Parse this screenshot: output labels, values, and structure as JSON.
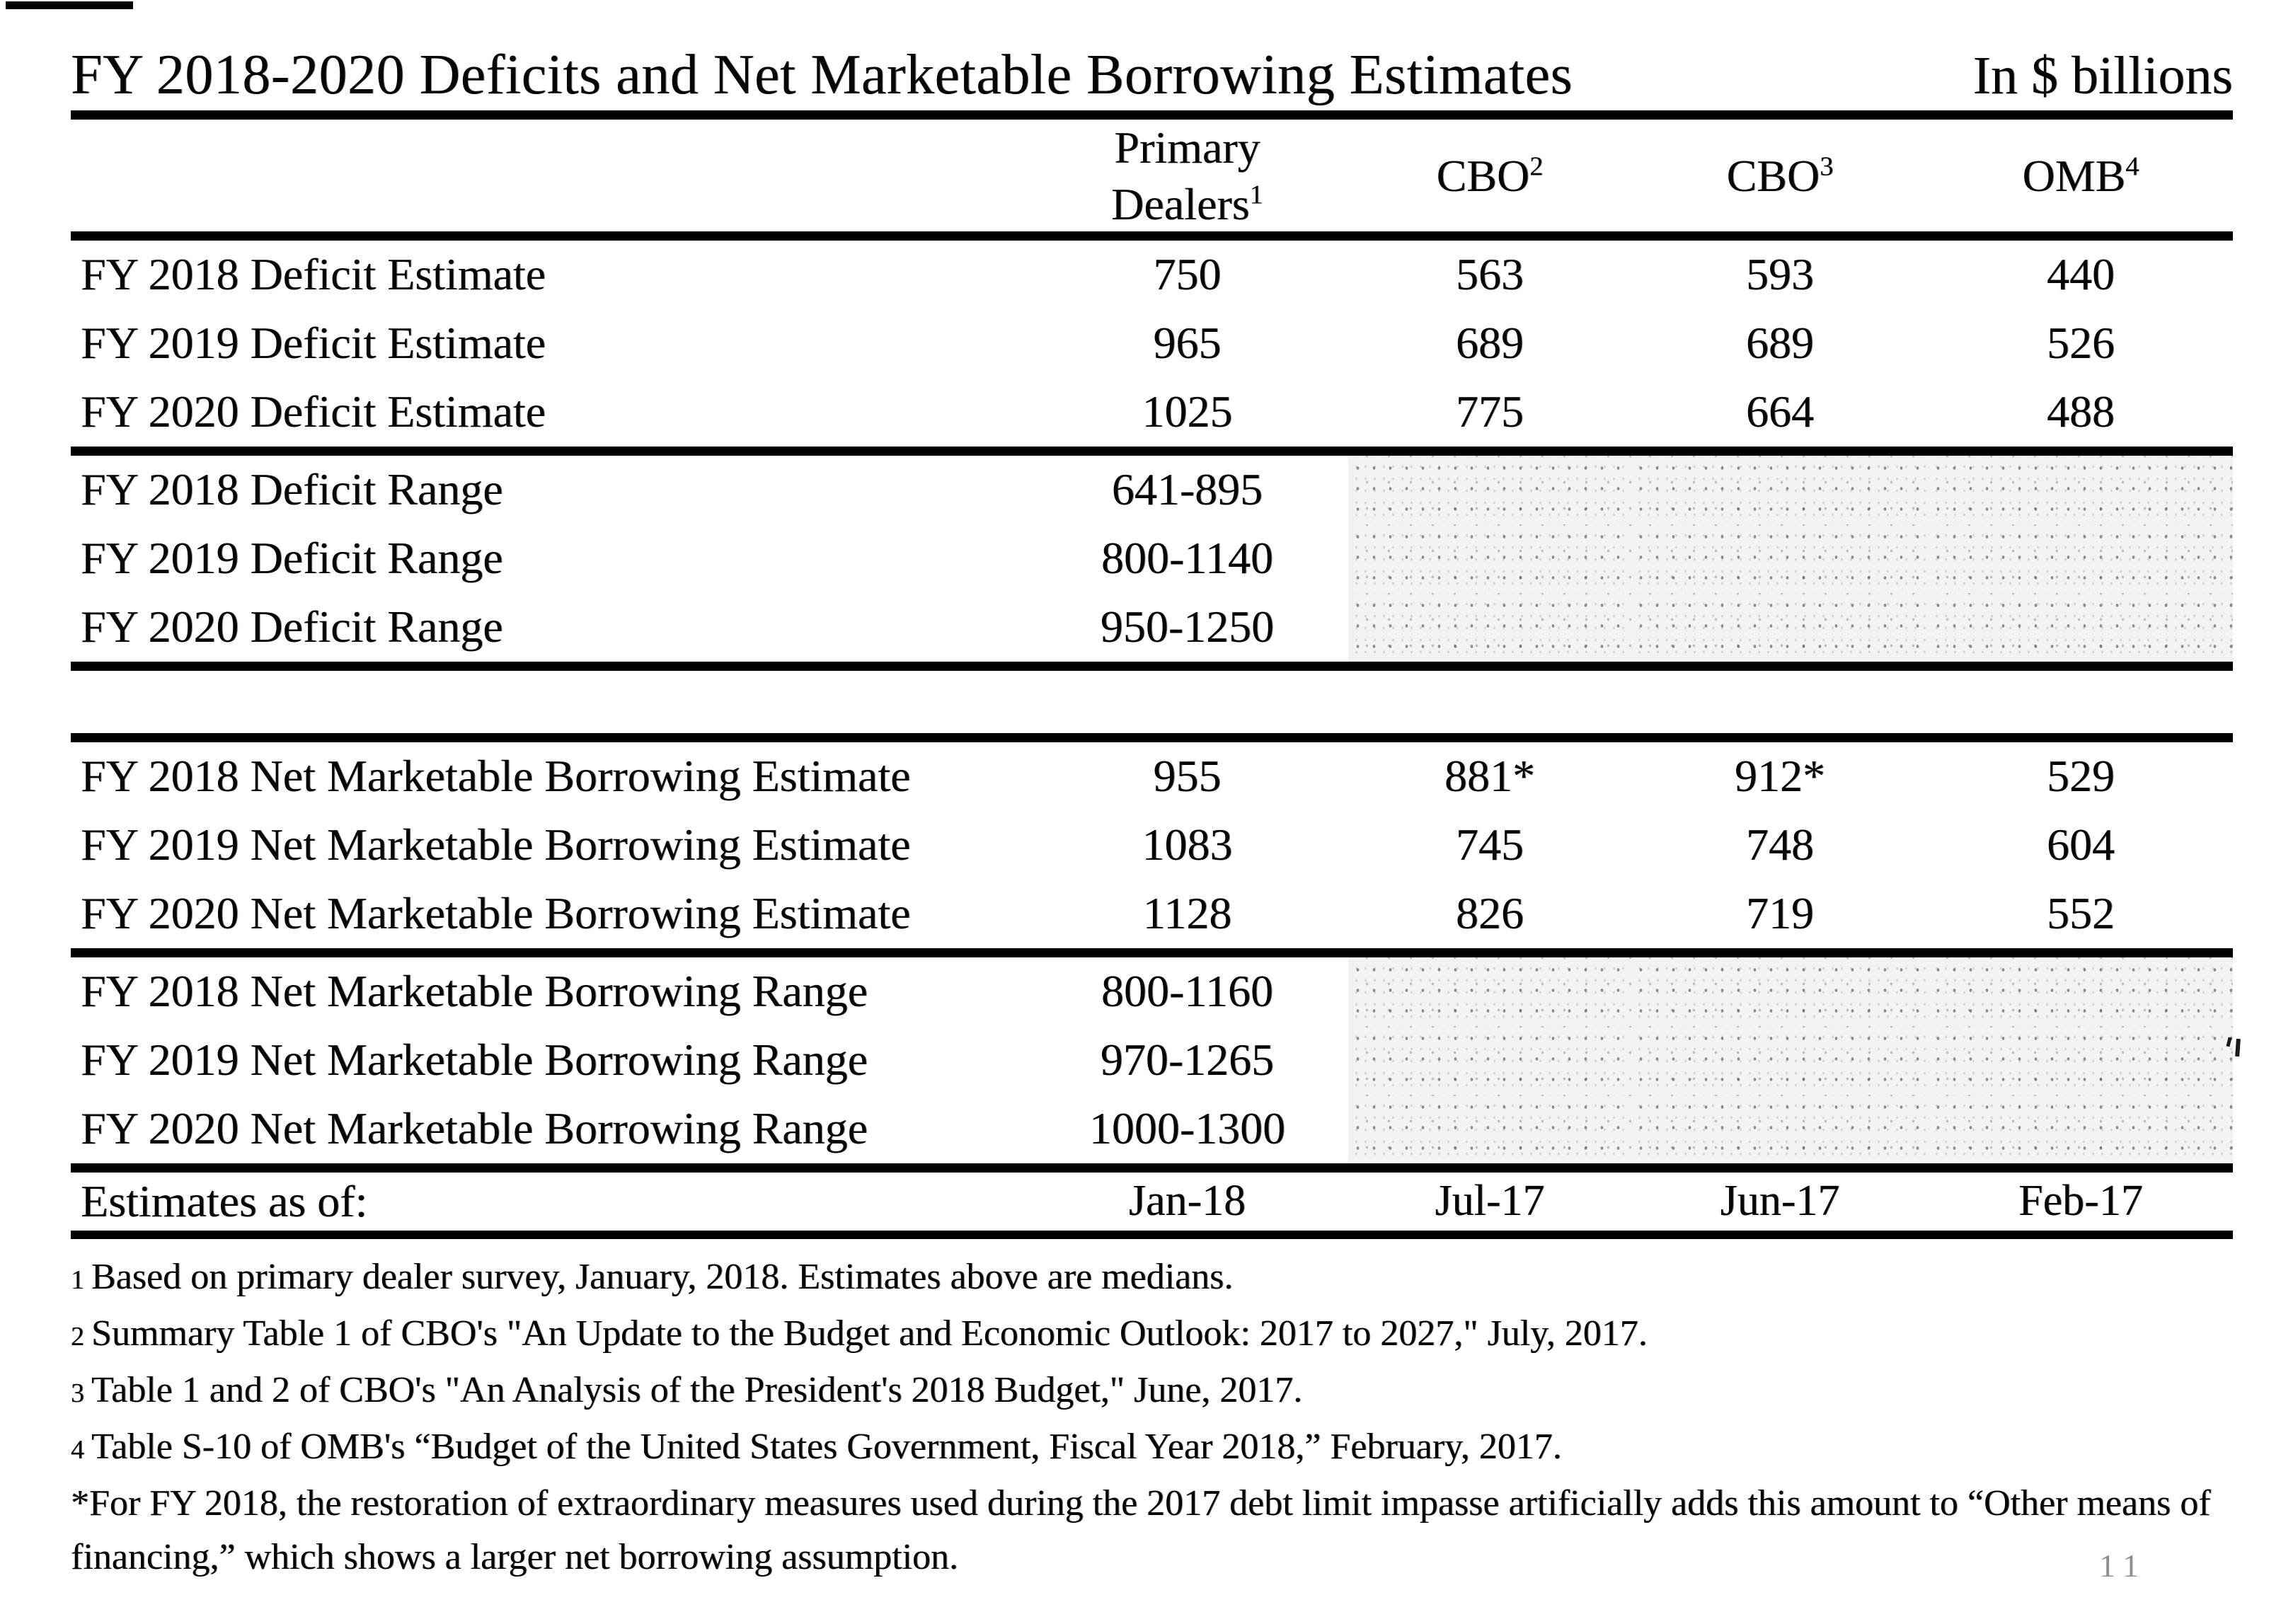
{
  "title": "FY 2018-2020 Deficits and Net Marketable Borrowing Estimates",
  "units_label": "In $ billions",
  "table": {
    "header": {
      "primary_dealers": {
        "line1": "Primary",
        "line2": "Dealers",
        "sup": "1"
      },
      "cbo_update": {
        "label": "CBO",
        "sup": "2"
      },
      "cbo_analysis": {
        "label": "CBO",
        "sup": "3"
      },
      "omb": {
        "label": "OMB",
        "sup": "4"
      }
    },
    "deficit_estimates": [
      {
        "label": "FY 2018 Deficit Estimate",
        "pd": "750",
        "cbo2": "563",
        "cbo3": "593",
        "omb": "440"
      },
      {
        "label": "FY 2019 Deficit Estimate",
        "pd": "965",
        "cbo2": "689",
        "cbo3": "689",
        "omb": "526"
      },
      {
        "label": "FY 2020 Deficit Estimate",
        "pd": "1025",
        "cbo2": "775",
        "cbo3": "664",
        "omb": "488"
      }
    ],
    "deficit_ranges": [
      {
        "label": "FY 2018 Deficit Range",
        "pd": "641-895"
      },
      {
        "label": "FY 2019 Deficit Range",
        "pd": "800-1140"
      },
      {
        "label": "FY 2020 Deficit Range",
        "pd": "950-1250"
      }
    ],
    "borrowing_estimates": [
      {
        "label": "FY 2018 Net Marketable Borrowing Estimate",
        "pd": "955",
        "cbo2": "881*",
        "cbo3": "912*",
        "omb": "529"
      },
      {
        "label": "FY 2019 Net Marketable Borrowing Estimate",
        "pd": "1083",
        "cbo2": "745",
        "cbo3": "748",
        "omb": "604"
      },
      {
        "label": "FY 2020 Net Marketable Borrowing Estimate",
        "pd": "1128",
        "cbo2": "826",
        "cbo3": "719",
        "omb": "552"
      }
    ],
    "borrowing_ranges": [
      {
        "label": "FY 2018 Net Marketable Borrowing Range",
        "pd": "800-1160"
      },
      {
        "label": "FY 2019 Net Marketable Borrowing Range",
        "pd": "970-1265"
      },
      {
        "label": "FY 2020 Net Marketable Borrowing Range",
        "pd": "1000-1300"
      }
    ],
    "footer": {
      "label": "Estimates as of:",
      "pd": "Jan-18",
      "cbo2": "Jul-17",
      "cbo3": "Jun-17",
      "omb": "Feb-17"
    }
  },
  "footnotes": [
    {
      "marker": "1",
      "text": "Based on primary dealer survey, January, 2018. Estimates above are medians."
    },
    {
      "marker": "2",
      "text": "Summary Table 1 of CBO's \"An Update to the Budget and Economic Outlook: 2017 to 2027,\" July, 2017."
    },
    {
      "marker": "3",
      "text": "Table 1 and 2 of CBO's \"An Analysis of the President's 2018 Budget,\" June, 2017."
    },
    {
      "marker": "4",
      "text": "Table S-10 of OMB's “Budget of the United States Government, Fiscal Year 2018,” February, 2017."
    },
    {
      "marker": "*",
      "text": "For FY 2018, the restoration of extraordinary measures used during the 2017 debt limit impasse artificially adds this amount to “Other means of financing,” which shows a larger net borrowing assumption."
    }
  ],
  "page_number": "11"
}
